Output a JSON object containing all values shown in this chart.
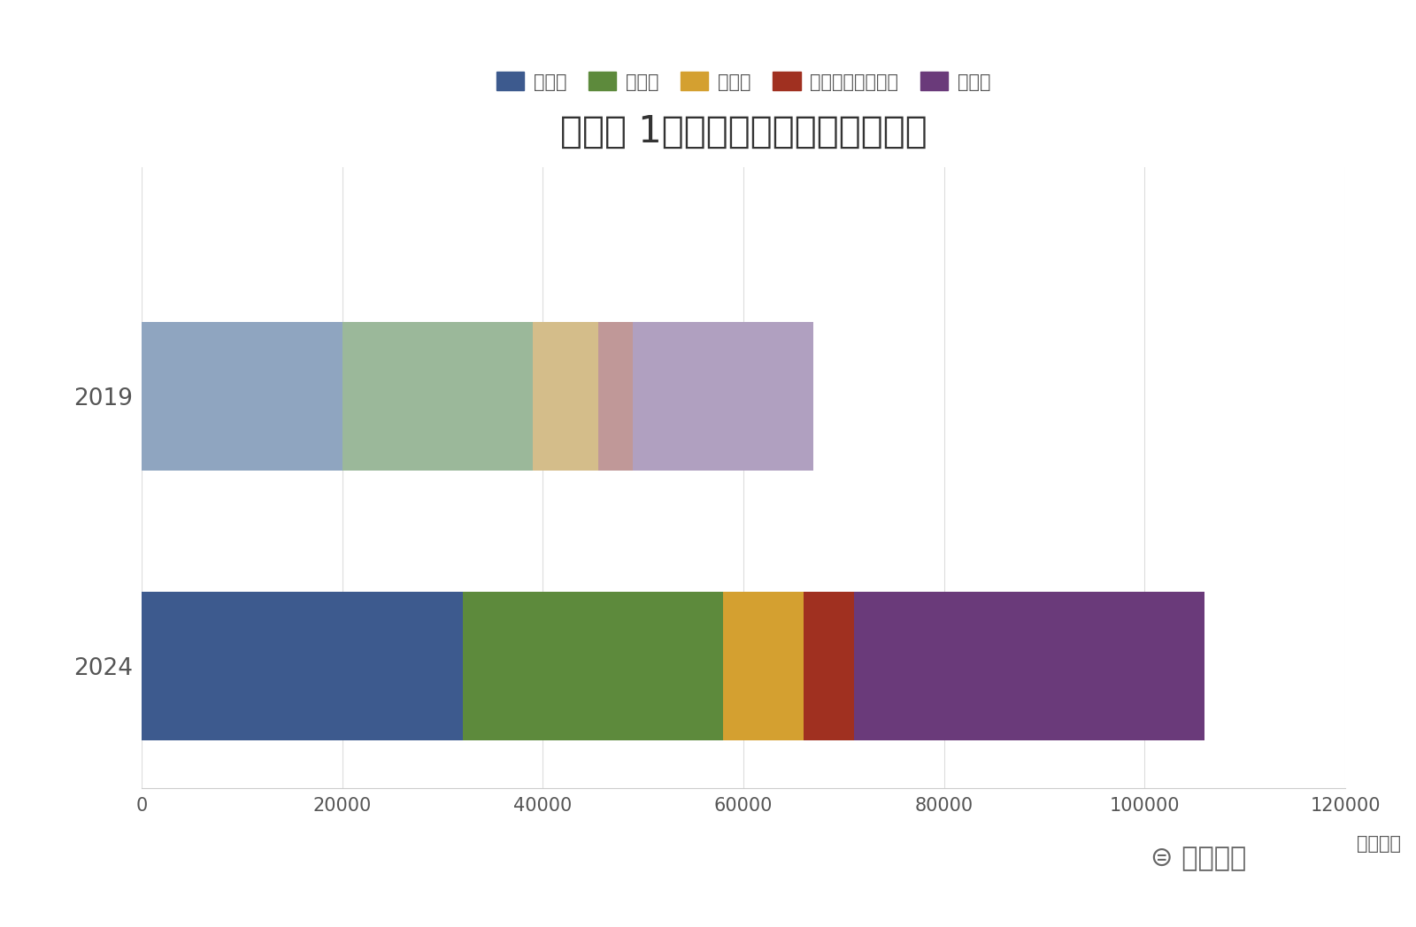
{
  "title": "費目別 1人あたり訪日韓国人消費額",
  "categories": [
    "2019",
    "2024"
  ],
  "legend_labels": [
    "宿泊費",
    "飲食費",
    "交通費",
    "娯楽等サービス費",
    "買物代"
  ],
  "values_2019": [
    20000,
    19000,
    6500,
    3500,
    18000
  ],
  "values_2024": [
    32000,
    26000,
    8000,
    5000,
    35000
  ],
  "colors_2019": [
    "#8fa5c0",
    "#9bb89a",
    "#d4bd8a",
    "#c09898",
    "#b0a0c0"
  ],
  "colors_2024": [
    "#3d5a8e",
    "#5d8a3c",
    "#d4a030",
    "#a03020",
    "#6a3a7a"
  ],
  "xlim": [
    0,
    120000
  ],
  "xticks": [
    0,
    20000,
    40000,
    60000,
    80000,
    100000,
    120000
  ],
  "xlabel": "（万円）",
  "background_color": "#ffffff",
  "title_fontsize": 30,
  "label_fontsize": 15,
  "tick_fontsize": 15,
  "legend_fontsize": 15,
  "bar_height": 0.55,
  "text_color": "#555555",
  "title_color": "#333333",
  "watermark_text": "⊜ 訪日ラボ"
}
